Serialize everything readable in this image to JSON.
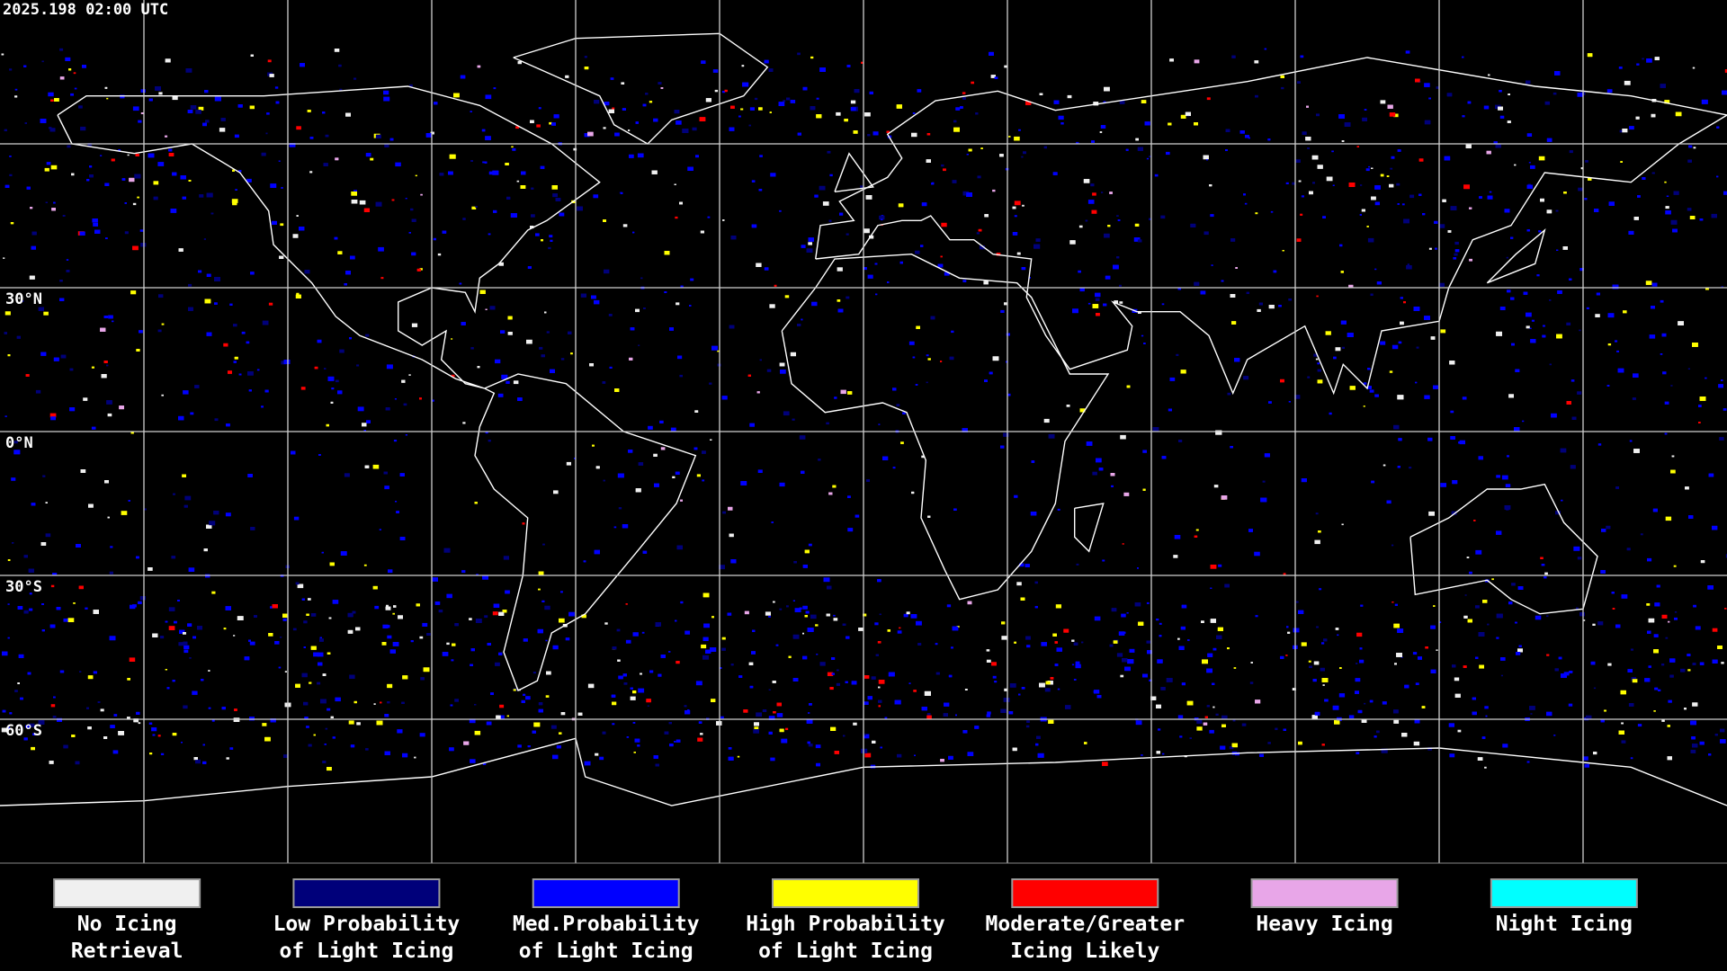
{
  "timestamp": "2025.198 02:00 UTC",
  "latitude_labels": [
    "30°N",
    "0°N",
    "30°S",
    "60°S"
  ],
  "legend": [
    {
      "label": [
        "No Icing",
        "Retrieval"
      ],
      "color": "#f0f0f0"
    },
    {
      "label": [
        "Low Probability",
        "of Light Icing"
      ],
      "color": "#00007a"
    },
    {
      "label": [
        "Med.Probability",
        "of Light Icing"
      ],
      "color": "#0000ff"
    },
    {
      "label": [
        "High Probability",
        "of Light Icing"
      ],
      "color": "#ffff00"
    },
    {
      "label": [
        "Moderate/Greater",
        "Icing Likely"
      ],
      "color": "#ff0000"
    },
    {
      "label": [
        "Heavy Icing"
      ],
      "color": "#e8a6e8"
    },
    {
      "label": [
        "Night Icing"
      ],
      "color": "#00ffff"
    }
  ]
}
